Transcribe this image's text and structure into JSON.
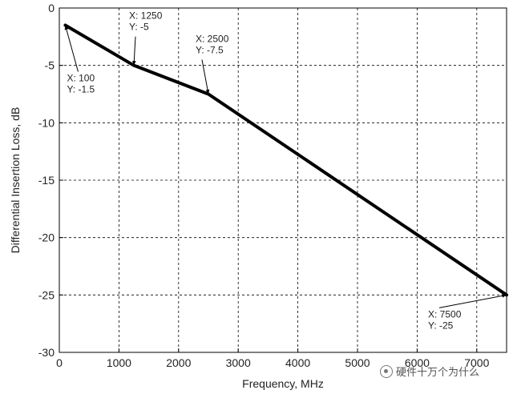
{
  "chart_data": {
    "type": "line",
    "xlabel": "Frequency, MHz",
    "ylabel": "Differential Insertion Loss, dB",
    "xlim": [
      0,
      7500
    ],
    "ylim": [
      -30,
      0
    ],
    "xticks": [
      0,
      1000,
      2000,
      3000,
      4000,
      5000,
      6000,
      7000
    ],
    "yticks": [
      0,
      -5,
      -10,
      -15,
      -20,
      -25,
      -30
    ],
    "grid": true,
    "colors": {
      "line": "#000000",
      "grid": "#000000",
      "axes": "#000000"
    },
    "series": [
      {
        "x": [
          100,
          1250,
          2500,
          7500
        ],
        "y": [
          -1.5,
          -5,
          -7.5,
          -25
        ]
      }
    ],
    "annotations": [
      {
        "x_text": "X: 100",
        "y_text": "Y: -1.5",
        "x": 100,
        "y": -1.5
      },
      {
        "x_text": "X: 1250",
        "y_text": "Y: -5",
        "x": 1250,
        "y": -5
      },
      {
        "x_text": "X: 2500",
        "y_text": "Y: -7.5",
        "x": 2500,
        "y": -7.5
      },
      {
        "x_text": "X: 7500",
        "y_text": "Y: -25",
        "x": 7500,
        "y": -25
      }
    ]
  },
  "watermark": {
    "text": "硬件十万个为什么",
    "icon": "wechat-channel-icon"
  }
}
